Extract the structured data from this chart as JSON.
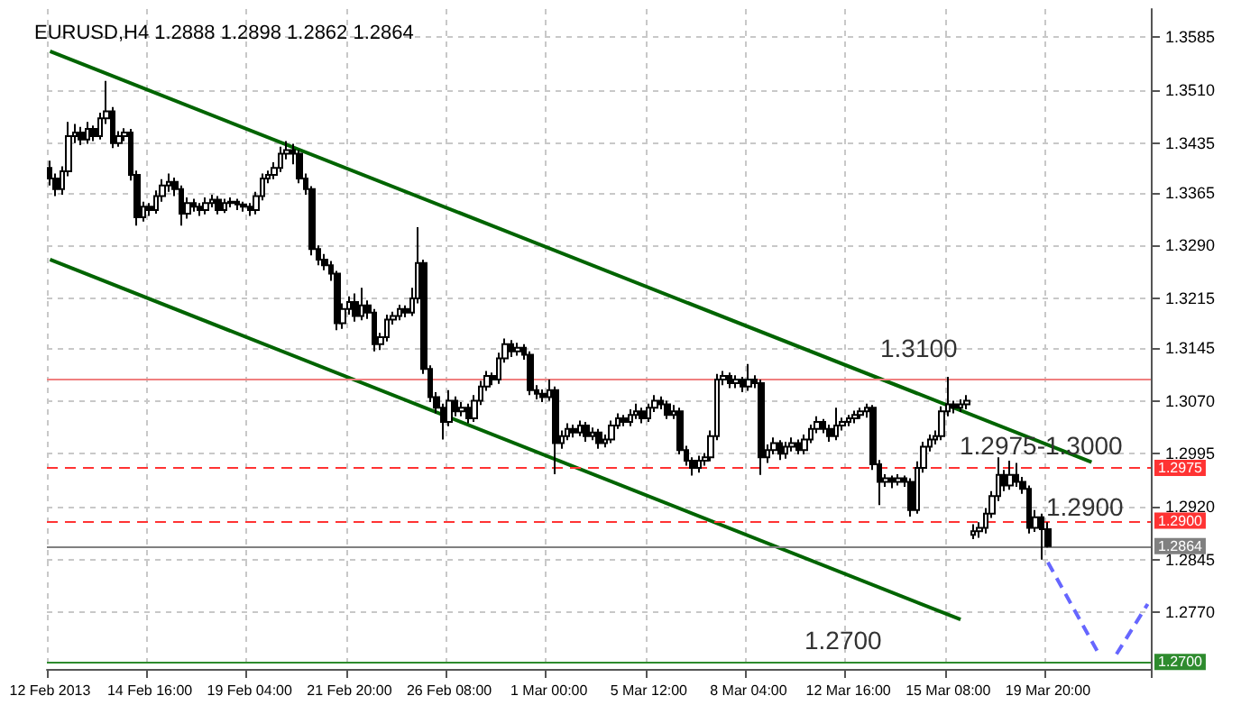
{
  "chart_data": {
    "type": "candlestick",
    "title": "EURUSD,H4 1.2888 1.2898 1.2862 1.2864",
    "categories": [
      "12 Feb 2013",
      null,
      null,
      null,
      null,
      null,
      null,
      null,
      null,
      null,
      null,
      null,
      null,
      null,
      null,
      null,
      "14 Feb 16:00",
      null,
      null,
      null,
      null,
      null,
      null,
      null,
      null,
      null,
      null,
      null,
      null,
      null,
      null,
      null,
      "19 Feb 04:00",
      null,
      null,
      null,
      null,
      null,
      null,
      null,
      null,
      null,
      null,
      null,
      null,
      null,
      null,
      null,
      "21 Feb 20:00",
      null,
      null,
      null,
      null,
      null,
      null,
      null,
      null,
      null,
      null,
      null,
      null,
      null,
      null,
      null,
      "26 Feb 08:00",
      null,
      null,
      null,
      null,
      null,
      null,
      null,
      null,
      null,
      null,
      null,
      null,
      null,
      null,
      null,
      "1 Mar 00:00",
      null,
      null,
      null,
      null,
      null,
      null,
      null,
      null,
      null,
      null,
      null,
      null,
      null,
      null,
      null,
      "5 Mar 12:00",
      null,
      null,
      null,
      null,
      null,
      null,
      null,
      null,
      null,
      null,
      null,
      null,
      null,
      null,
      null,
      "8 Mar 04:00",
      null,
      null,
      null,
      null,
      null,
      null,
      null,
      null,
      null,
      null,
      null,
      null,
      null,
      null,
      null,
      "12 Mar 16:00",
      null,
      null,
      null,
      null,
      null,
      null,
      null,
      null,
      null,
      null,
      null,
      null,
      null,
      null,
      null,
      "15 Mar 08:00",
      null,
      null,
      null,
      null,
      null,
      null,
      null,
      null,
      null,
      null,
      null,
      null,
      null,
      null,
      null,
      "19 Mar 20:00",
      null,
      null,
      null,
      null,
      null,
      null,
      null,
      null,
      null,
      null,
      null,
      null,
      null,
      null,
      null,
      null
    ],
    "color": "#000000",
    "ohlc": [
      [
        1.34,
        1.341,
        1.3375,
        1.3385
      ],
      [
        1.3385,
        1.3392,
        1.336,
        1.337
      ],
      [
        1.337,
        1.3402,
        1.3362,
        1.3395
      ],
      [
        1.3395,
        1.3465,
        1.3388,
        1.3445
      ],
      [
        1.3445,
        1.3462,
        1.3435,
        1.345
      ],
      [
        1.345,
        1.3458,
        1.3432,
        1.344
      ],
      [
        1.344,
        1.3465,
        1.3434,
        1.3455
      ],
      [
        1.3455,
        1.346,
        1.3438,
        1.3445
      ],
      [
        1.3445,
        1.3478,
        1.344,
        1.347
      ],
      [
        1.347,
        1.3523,
        1.3462,
        1.348
      ],
      [
        1.348,
        1.3486,
        1.3428,
        1.3435
      ],
      [
        1.3435,
        1.3452,
        1.343,
        1.3445
      ],
      [
        1.3445,
        1.3456,
        1.3438,
        1.345
      ],
      [
        1.345,
        1.3455,
        1.3382,
        1.339
      ],
      [
        1.339,
        1.3396,
        1.3318,
        1.333
      ],
      [
        1.333,
        1.3352,
        1.3324,
        1.3345
      ],
      [
        1.3345,
        1.335,
        1.3332,
        1.334
      ],
      [
        1.334,
        1.3368,
        1.3335,
        1.336
      ],
      [
        1.336,
        1.3384,
        1.3352,
        1.3375
      ],
      [
        1.3375,
        1.3392,
        1.3366,
        1.338
      ],
      [
        1.338,
        1.3386,
        1.336,
        1.337
      ],
      [
        1.337,
        1.3375,
        1.3318,
        1.3335
      ],
      [
        1.3335,
        1.3358,
        1.3328,
        1.335
      ],
      [
        1.335,
        1.3356,
        1.3338,
        1.3345
      ],
      [
        1.3345,
        1.335,
        1.3332,
        1.334
      ],
      [
        1.334,
        1.3358,
        1.3334,
        1.335
      ],
      [
        1.335,
        1.3362,
        1.3344,
        1.3355
      ],
      [
        1.3355,
        1.336,
        1.3334,
        1.334
      ],
      [
        1.334,
        1.3356,
        1.3336,
        1.335
      ],
      [
        1.335,
        1.3358,
        1.3344,
        1.3352
      ],
      [
        1.3352,
        1.3356,
        1.334,
        1.3348
      ],
      [
        1.3348,
        1.3352,
        1.3338,
        1.3345
      ],
      [
        1.3345,
        1.335,
        1.3332,
        1.334
      ],
      [
        1.334,
        1.3366,
        1.3334,
        1.336
      ],
      [
        1.336,
        1.3392,
        1.3354,
        1.3385
      ],
      [
        1.3385,
        1.3396,
        1.3378,
        1.339
      ],
      [
        1.339,
        1.3408,
        1.3384,
        1.34
      ],
      [
        1.34,
        1.343,
        1.3394,
        1.342
      ],
      [
        1.342,
        1.3438,
        1.3412,
        1.3425
      ],
      [
        1.3425,
        1.3434,
        1.3405,
        1.342
      ],
      [
        1.342,
        1.3425,
        1.3378,
        1.3385
      ],
      [
        1.3385,
        1.3392,
        1.3362,
        1.337
      ],
      [
        1.337,
        1.3374,
        1.3276,
        1.3285
      ],
      [
        1.3285,
        1.329,
        1.3262,
        1.327
      ],
      [
        1.327,
        1.3278,
        1.3255,
        1.3262
      ],
      [
        1.3262,
        1.3268,
        1.324,
        1.325
      ],
      [
        1.325,
        1.3254,
        1.317,
        1.318
      ],
      [
        1.318,
        1.3208,
        1.3172,
        1.32
      ],
      [
        1.32,
        1.3218,
        1.3192,
        1.321
      ],
      [
        1.321,
        1.3222,
        1.3182,
        1.319
      ],
      [
        1.319,
        1.323,
        1.3184,
        1.3205
      ],
      [
        1.3205,
        1.3212,
        1.3186,
        1.3195
      ],
      [
        1.3195,
        1.32,
        1.314,
        1.315
      ],
      [
        1.315,
        1.3166,
        1.3142,
        1.316
      ],
      [
        1.316,
        1.3192,
        1.3154,
        1.3185
      ],
      [
        1.3185,
        1.3196,
        1.3178,
        1.319
      ],
      [
        1.319,
        1.3206,
        1.3184,
        1.32
      ],
      [
        1.32,
        1.3205,
        1.3188,
        1.3195
      ],
      [
        1.3195,
        1.323,
        1.319,
        1.3215
      ],
      [
        1.3215,
        1.3316,
        1.3208,
        1.3265
      ],
      [
        1.3265,
        1.327,
        1.3108,
        1.3115
      ],
      [
        1.3115,
        1.312,
        1.3068,
        1.3075
      ],
      [
        1.3075,
        1.3082,
        1.3052,
        1.306
      ],
      [
        1.306,
        1.3066,
        1.3015,
        1.304
      ],
      [
        1.304,
        1.3085,
        1.3034,
        1.307
      ],
      [
        1.307,
        1.3076,
        1.3048,
        1.3055
      ],
      [
        1.3055,
        1.3068,
        1.3048,
        1.306
      ],
      [
        1.306,
        1.3066,
        1.3038,
        1.3045
      ],
      [
        1.3045,
        1.3078,
        1.304,
        1.307
      ],
      [
        1.307,
        1.3098,
        1.3064,
        1.309
      ],
      [
        1.309,
        1.3112,
        1.3084,
        1.3105
      ],
      [
        1.3105,
        1.311,
        1.3092,
        1.31
      ],
      [
        1.31,
        1.3138,
        1.3094,
        1.313
      ],
      [
        1.313,
        1.3158,
        1.3124,
        1.315
      ],
      [
        1.315,
        1.3156,
        1.3132,
        1.314
      ],
      [
        1.314,
        1.3152,
        1.3134,
        1.3145
      ],
      [
        1.3145,
        1.315,
        1.3128,
        1.3135
      ],
      [
        1.3135,
        1.314,
        1.3078,
        1.3085
      ],
      [
        1.3085,
        1.3092,
        1.3072,
        1.308
      ],
      [
        1.308,
        1.3086,
        1.3068,
        1.3075
      ],
      [
        1.3075,
        1.31,
        1.307,
        1.3085
      ],
      [
        1.3085,
        1.309,
        1.2966,
        1.301
      ],
      [
        1.301,
        1.3028,
        1.3002,
        1.302
      ],
      [
        1.302,
        1.3038,
        1.3014,
        1.303
      ],
      [
        1.303,
        1.3036,
        1.3018,
        1.3025
      ],
      [
        1.3025,
        1.3042,
        1.302,
        1.3035
      ],
      [
        1.3035,
        1.304,
        1.3012,
        1.302
      ],
      [
        1.302,
        1.3032,
        1.3014,
        1.3025
      ],
      [
        1.3025,
        1.303,
        1.3002,
        1.301
      ],
      [
        1.301,
        1.3022,
        1.3004,
        1.3015
      ],
      [
        1.3015,
        1.3042,
        1.301,
        1.3035
      ],
      [
        1.3035,
        1.3052,
        1.303,
        1.3045
      ],
      [
        1.3045,
        1.305,
        1.3034,
        1.304
      ],
      [
        1.304,
        1.3058,
        1.3034,
        1.305
      ],
      [
        1.305,
        1.3066,
        1.3044,
        1.3055
      ],
      [
        1.3055,
        1.306,
        1.3038,
        1.3045
      ],
      [
        1.3045,
        1.3066,
        1.304,
        1.306
      ],
      [
        1.306,
        1.3078,
        1.3054,
        1.307
      ],
      [
        1.307,
        1.3076,
        1.3058,
        1.3065
      ],
      [
        1.3065,
        1.307,
        1.3044,
        1.305
      ],
      [
        1.305,
        1.3064,
        1.3044,
        1.3055
      ],
      [
        1.3055,
        1.306,
        1.2994,
        1.3
      ],
      [
        1.3,
        1.3006,
        1.2978,
        1.2985
      ],
      [
        1.2985,
        1.299,
        1.2964,
        1.2975
      ],
      [
        1.2975,
        1.2992,
        1.2968,
        1.2985
      ],
      [
        1.2985,
        1.2996,
        1.2978,
        1.299
      ],
      [
        1.299,
        1.3028,
        1.2984,
        1.302
      ],
      [
        1.302,
        1.3108,
        1.3014,
        1.31
      ],
      [
        1.31,
        1.3112,
        1.3092,
        1.3105
      ],
      [
        1.3105,
        1.311,
        1.3088,
        1.3095
      ],
      [
        1.3095,
        1.3106,
        1.3088,
        1.31
      ],
      [
        1.31,
        1.3104,
        1.3082,
        1.309
      ],
      [
        1.309,
        1.3122,
        1.3084,
        1.31
      ],
      [
        1.31,
        1.3106,
        1.3088,
        1.3095
      ],
      [
        1.3095,
        1.31,
        1.2965,
        1.299
      ],
      [
        1.299,
        1.3008,
        1.2982,
        1.3
      ],
      [
        1.3,
        1.3018,
        1.2994,
        1.301
      ],
      [
        1.301,
        1.3014,
        1.2986,
        1.2995
      ],
      [
        1.2995,
        1.3012,
        1.2988,
        1.3005
      ],
      [
        1.3005,
        1.3018,
        1.2998,
        1.301
      ],
      [
        1.301,
        1.3015,
        1.2994,
        1.3
      ],
      [
        1.3,
        1.3022,
        1.2994,
        1.3015
      ],
      [
        1.3015,
        1.3036,
        1.301,
        1.303
      ],
      [
        1.303,
        1.3048,
        1.3024,
        1.304
      ],
      [
        1.304,
        1.3044,
        1.3024,
        1.303
      ],
      [
        1.303,
        1.3036,
        1.3012,
        1.302
      ],
      [
        1.302,
        1.306,
        1.3014,
        1.3035
      ],
      [
        1.3035,
        1.3046,
        1.3028,
        1.304
      ],
      [
        1.304,
        1.305,
        1.3034,
        1.3045
      ],
      [
        1.3045,
        1.3056,
        1.3038,
        1.305
      ],
      [
        1.305,
        1.306,
        1.3044,
        1.3055
      ],
      [
        1.3055,
        1.3066,
        1.3046,
        1.306
      ],
      [
        1.306,
        1.3064,
        1.2972,
        1.298
      ],
      [
        1.298,
        1.2986,
        1.2922,
        1.2955
      ],
      [
        1.2955,
        1.2966,
        1.2948,
        1.296
      ],
      [
        1.296,
        1.2964,
        1.2946,
        1.2955
      ],
      [
        1.2955,
        1.2966,
        1.295,
        1.296
      ],
      [
        1.296,
        1.2964,
        1.2948,
        1.2955
      ],
      [
        1.2955,
        1.296,
        1.2906,
        1.2915
      ],
      [
        1.2915,
        1.2984,
        1.291,
        1.2975
      ],
      [
        1.2975,
        1.3012,
        1.2968,
        1.3005
      ],
      [
        1.3005,
        1.3022,
        1.2998,
        1.3015
      ],
      [
        1.3015,
        1.3028,
        1.3008,
        1.302
      ],
      [
        1.302,
        1.3062,
        1.3014,
        1.3055
      ],
      [
        1.3055,
        1.3104,
        1.3048,
        1.3065
      ],
      [
        1.3065,
        1.307,
        1.3052,
        1.306
      ],
      [
        1.306,
        1.3072,
        1.3054,
        1.3065
      ],
      [
        1.3065,
        1.3078,
        1.3058,
        1.307
      ],
      [
        1.288,
        1.2895,
        1.2874,
        1.2885
      ],
      [
        1.2885,
        1.2898,
        1.2876,
        1.289
      ],
      [
        1.289,
        1.2918,
        1.2882,
        1.291
      ],
      [
        1.291,
        1.2942,
        1.2904,
        1.2935
      ],
      [
        1.2935,
        1.299,
        1.2928,
        1.2965
      ],
      [
        1.2965,
        1.2972,
        1.2942,
        1.295
      ],
      [
        1.295,
        1.2985,
        1.2944,
        1.2965
      ],
      [
        1.2965,
        1.2982,
        1.2948,
        1.2955
      ],
      [
        1.2955,
        1.2962,
        1.2938,
        1.2945
      ],
      [
        1.2945,
        1.295,
        1.2882,
        1.289
      ],
      [
        1.289,
        1.2915,
        1.2884,
        1.2905
      ],
      [
        1.2905,
        1.291,
        1.2845,
        1.2888
      ],
      [
        1.2888,
        1.2898,
        1.2862,
        1.2864
      ],
      null,
      null,
      null,
      null,
      null,
      null,
      null,
      null,
      null,
      null,
      null,
      null,
      null,
      null,
      null,
      null
    ],
    "series": [
      {
        "type": "line",
        "color": "#006400",
        "values": [
          1.3565,
          null,
          null,
          null,
          null,
          null,
          null,
          null,
          null,
          null,
          null,
          null,
          null,
          null,
          null,
          null,
          null,
          null,
          null,
          null,
          null,
          null,
          null,
          null,
          null,
          null,
          null,
          null,
          null,
          null,
          null,
          null,
          null,
          null,
          null,
          null,
          null,
          null,
          null,
          null,
          null,
          null,
          null,
          null,
          null,
          null,
          null,
          null,
          null,
          null,
          null,
          null,
          null,
          null,
          null,
          null,
          null,
          null,
          null,
          null,
          null,
          null,
          null,
          null,
          null,
          null,
          null,
          null,
          null,
          null,
          null,
          null,
          null,
          null,
          null,
          null,
          null,
          null,
          null,
          null,
          null,
          null,
          null,
          null,
          null,
          null,
          null,
          null,
          null,
          null,
          null,
          null,
          null,
          null,
          null,
          null,
          null,
          null,
          null,
          null,
          null,
          null,
          null,
          null,
          null,
          null,
          null,
          null,
          null,
          null,
          null,
          null,
          null,
          null,
          null,
          null,
          null,
          null,
          null,
          null,
          null,
          null,
          null,
          null,
          null,
          null,
          null,
          null,
          null,
          null,
          null,
          null,
          null,
          null,
          null,
          null,
          null,
          null,
          null,
          null,
          null,
          null,
          null,
          null,
          null,
          null,
          null,
          null,
          null,
          null,
          null,
          null,
          null,
          null,
          null,
          null,
          null,
          null,
          null,
          null,
          null,
          null,
          null,
          null,
          null,
          null,
          null,
          1.2983,
          null,
          null,
          null,
          null,
          null,
          null,
          null,
          null,
          null
        ]
      },
      {
        "type": "line",
        "color": "#006400",
        "values": [
          1.327,
          null,
          null,
          null,
          null,
          null,
          null,
          null,
          null,
          null,
          null,
          null,
          null,
          null,
          null,
          null,
          null,
          null,
          null,
          null,
          null,
          null,
          null,
          null,
          null,
          null,
          null,
          null,
          null,
          null,
          null,
          null,
          null,
          null,
          null,
          null,
          null,
          null,
          null,
          null,
          null,
          null,
          null,
          null,
          null,
          null,
          null,
          null,
          null,
          null,
          null,
          null,
          null,
          null,
          null,
          null,
          null,
          null,
          null,
          null,
          null,
          null,
          null,
          null,
          null,
          null,
          null,
          null,
          null,
          null,
          null,
          null,
          null,
          null,
          null,
          null,
          null,
          null,
          null,
          null,
          null,
          null,
          null,
          null,
          null,
          null,
          null,
          null,
          null,
          null,
          null,
          null,
          null,
          null,
          null,
          null,
          null,
          null,
          null,
          null,
          null,
          null,
          null,
          null,
          null,
          null,
          null,
          null,
          null,
          null,
          null,
          null,
          null,
          null,
          null,
          null,
          null,
          null,
          null,
          null,
          null,
          null,
          null,
          null,
          null,
          null,
          null,
          null,
          null,
          null,
          null,
          null,
          null,
          null,
          null,
          null,
          null,
          null,
          null,
          null,
          null,
          null,
          null,
          null,
          null,
          null,
          1.276,
          null,
          null,
          null,
          null,
          null,
          null,
          null,
          null,
          null,
          null,
          null,
          null,
          null,
          null,
          null,
          null,
          null,
          null,
          null,
          null,
          null,
          null,
          null,
          null,
          null,
          null,
          null,
          null,
          null,
          null
        ]
      },
      {
        "type": "line",
        "color": "#6666ff",
        "line_style": "dashed",
        "values": [
          null,
          null,
          null,
          null,
          null,
          null,
          null,
          null,
          null,
          null,
          null,
          null,
          null,
          null,
          null,
          null,
          null,
          null,
          null,
          null,
          null,
          null,
          null,
          null,
          null,
          null,
          null,
          null,
          null,
          null,
          null,
          null,
          null,
          null,
          null,
          null,
          null,
          null,
          null,
          null,
          null,
          null,
          null,
          null,
          null,
          null,
          null,
          null,
          null,
          null,
          null,
          null,
          null,
          null,
          null,
          null,
          null,
          null,
          null,
          null,
          null,
          null,
          null,
          null,
          null,
          null,
          null,
          null,
          null,
          null,
          null,
          null,
          null,
          null,
          null,
          null,
          null,
          null,
          null,
          null,
          null,
          null,
          null,
          null,
          null,
          null,
          null,
          null,
          null,
          null,
          null,
          null,
          null,
          null,
          null,
          null,
          null,
          null,
          null,
          null,
          null,
          null,
          null,
          null,
          null,
          null,
          null,
          null,
          null,
          null,
          null,
          null,
          null,
          null,
          null,
          null,
          null,
          null,
          null,
          null,
          null,
          null,
          null,
          null,
          null,
          null,
          null,
          null,
          null,
          null,
          null,
          null,
          null,
          null,
          null,
          null,
          null,
          null,
          null,
          null,
          null,
          null,
          null,
          null,
          null,
          null,
          null,
          null,
          null,
          null,
          null,
          null,
          null,
          null,
          null,
          null,
          null,
          null,
          null,
          null,
          1.2841,
          null,
          null,
          null,
          null,
          null,
          null,
          null,
          1.2714,
          null,
          null,
          null,
          null,
          null,
          null,
          null,
          null
        ]
      },
      {
        "type": "line",
        "color": "#6666ff",
        "line_style": "dashed",
        "values": [
          null,
          null,
          null,
          null,
          null,
          null,
          null,
          null,
          null,
          null,
          null,
          null,
          null,
          null,
          null,
          null,
          null,
          null,
          null,
          null,
          null,
          null,
          null,
          null,
          null,
          null,
          null,
          null,
          null,
          null,
          null,
          null,
          null,
          null,
          null,
          null,
          null,
          null,
          null,
          null,
          null,
          null,
          null,
          null,
          null,
          null,
          null,
          null,
          null,
          null,
          null,
          null,
          null,
          null,
          null,
          null,
          null,
          null,
          null,
          null,
          null,
          null,
          null,
          null,
          null,
          null,
          null,
          null,
          null,
          null,
          null,
          null,
          null,
          null,
          null,
          null,
          null,
          null,
          null,
          null,
          null,
          null,
          null,
          null,
          null,
          null,
          null,
          null,
          null,
          null,
          null,
          null,
          null,
          null,
          null,
          null,
          null,
          null,
          null,
          null,
          null,
          null,
          null,
          null,
          null,
          null,
          null,
          null,
          null,
          null,
          null,
          null,
          null,
          null,
          null,
          null,
          null,
          null,
          null,
          null,
          null,
          null,
          null,
          null,
          null,
          null,
          null,
          null,
          null,
          null,
          null,
          null,
          null,
          null,
          null,
          null,
          null,
          null,
          null,
          null,
          null,
          null,
          null,
          null,
          null,
          null,
          null,
          null,
          null,
          null,
          null,
          null,
          null,
          null,
          null,
          null,
          null,
          null,
          null,
          null,
          null,
          null,
          null,
          null,
          null,
          null,
          null,
          null,
          null,
          null,
          null,
          1.2711,
          null,
          null,
          null,
          null,
          1.2782
        ]
      }
    ],
    "ylim": [
      1.269,
      1.3625
    ],
    "yticks": [
      1.3585,
      {
        "value": 1.351,
        "label": "1.3510"
      },
      1.3435,
      1.3365,
      {
        "value": 1.329,
        "label": "1.3290"
      },
      1.3215,
      1.3145,
      {
        "value": 1.307,
        "label": "1.3070"
      },
      1.2995,
      {
        "value": 1.292,
        "label": "1.2920"
      },
      1.2845,
      {
        "value": 1.277,
        "label": "1.2770"
      }
    ],
    "ref_lines": [
      {
        "axis": "y",
        "value": 1.31,
        "color": "#f08080"
      },
      {
        "axis": "y",
        "value": 1.2975,
        "label": "1.2975",
        "color": "#ff3333",
        "line_style": "dashed"
      },
      {
        "axis": "y",
        "value": 1.29,
        "label": "1.2900",
        "color": "#ff3333",
        "line_style": "dashed"
      },
      {
        "axis": "y",
        "value": 1.2864,
        "label": "1.2864",
        "color": "#808080"
      },
      {
        "axis": "y",
        "value": 1.27,
        "label": "1.2700",
        "color": "#2e8b2e"
      }
    ],
    "annotations": [
      "1.3100",
      "1.2975-1.3000",
      "1.2900",
      "1.2700"
    ],
    "grid": true,
    "marker": "none"
  }
}
